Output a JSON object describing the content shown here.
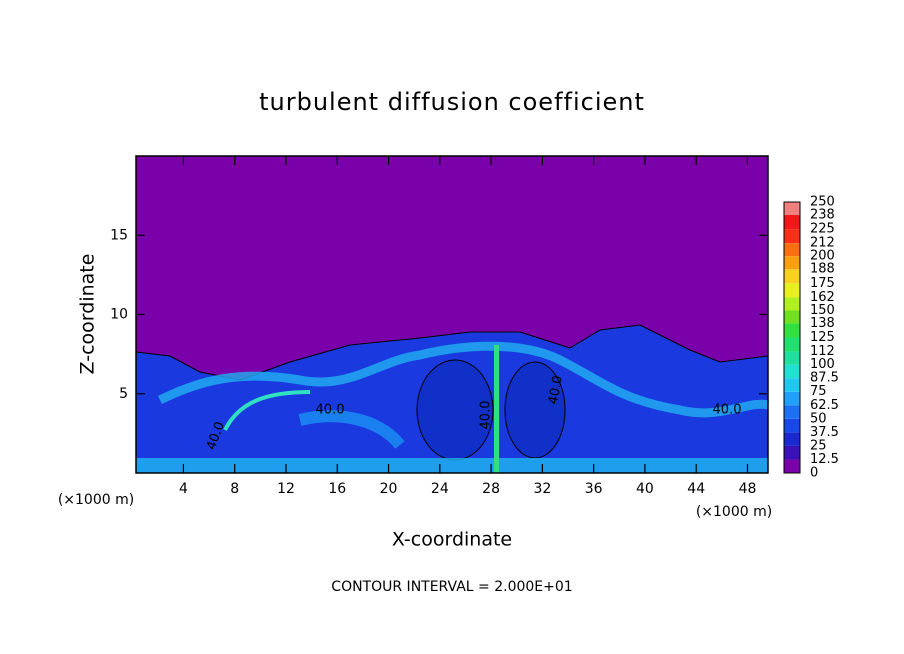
{
  "chart_data": {
    "type": "contour",
    "title": "turbulent diffusion coefficient",
    "x_label": "X-coordinate",
    "y_label": "Z-coordinate",
    "x_unit": "(×1000 m)",
    "y_unit": "(×1000 m)",
    "xlim": [
      0.3,
      49.6
    ],
    "ylim": [
      0,
      20
    ],
    "xticks": [
      4,
      8,
      12,
      16,
      20,
      24,
      28,
      32,
      36,
      40,
      44,
      48
    ],
    "yticks": [
      5,
      10,
      15
    ],
    "contour_labels": [
      "40.0",
      "40.0",
      "40.0",
      "40.0",
      "40.0"
    ],
    "footnote": "CONTOUR INTERVAL = 2.000E+01",
    "colorbar": {
      "levels": [
        0,
        12.5,
        25,
        37.5,
        50,
        62.5,
        75,
        87.5,
        100,
        112,
        125,
        138,
        150,
        162,
        175,
        188,
        200,
        212,
        225,
        238,
        250
      ],
      "colors": [
        "#7a00aa",
        "#3a10b8",
        "#1a28d0",
        "#1848e8",
        "#1c70f4",
        "#20a0f8",
        "#20c8f0",
        "#20e0d0",
        "#20e0a0",
        "#20e070",
        "#30e040",
        "#70e020",
        "#b0f020",
        "#e8f020",
        "#f8d020",
        "#f8a010",
        "#f87010",
        "#f83018",
        "#f01818",
        "#f08080"
      ]
    }
  }
}
